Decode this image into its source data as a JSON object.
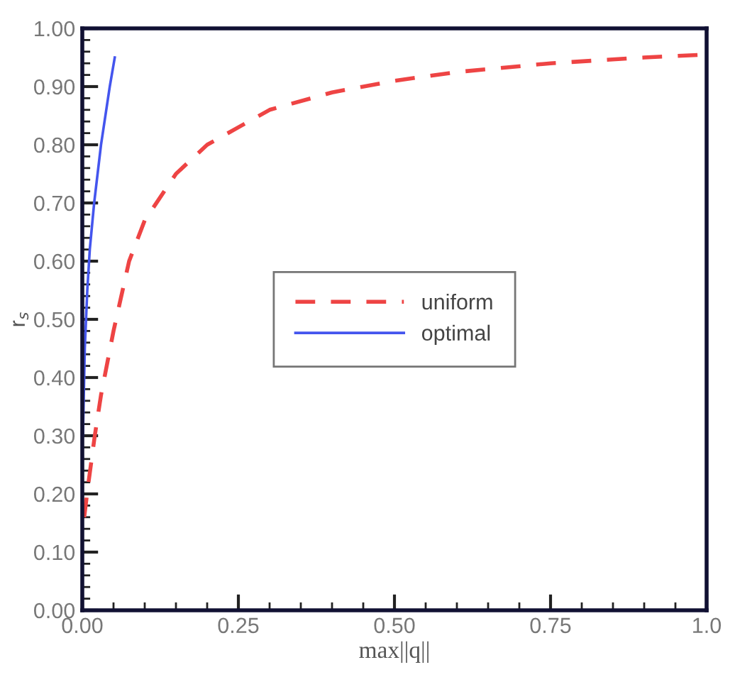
{
  "chart_data": {
    "type": "line",
    "xlabel": "max||q||",
    "ylabel": "r$_{s}$",
    "xlim": [
      0,
      1
    ],
    "ylim": [
      0,
      1
    ],
    "xticks": [
      {
        "value": 0,
        "label": "0.00"
      },
      0.25,
      {
        "value": 0.5,
        "label": "0.50"
      },
      0.75,
      {
        "value": 1,
        "label": "1.0"
      }
    ],
    "yticks": [
      {
        "value": 0,
        "label": "0.00"
      },
      {
        "value": 0.1,
        "label": "0.10"
      },
      {
        "value": 0.2,
        "label": "0.20"
      },
      {
        "value": 0.3,
        "label": "0.30"
      },
      {
        "value": 0.4,
        "label": "0.40"
      },
      {
        "value": 0.5,
        "label": "0.50"
      },
      {
        "value": 0.6,
        "label": "0.60"
      },
      {
        "value": 0.7,
        "label": "0.70"
      },
      {
        "value": 0.8,
        "label": "0.80"
      },
      {
        "value": 0.9,
        "label": "0.90"
      },
      {
        "value": 1,
        "label": "1.00"
      }
    ],
    "grid": false,
    "legend": "center",
    "series": [
      {
        "name": "uniform",
        "color": "#ee4444",
        "line_style": "dashed",
        "x": [
          0.003,
          0.01,
          0.02,
          0.03,
          0.05,
          0.075,
          0.1,
          0.15,
          0.2,
          0.25,
          0.3,
          0.4,
          0.5,
          0.6,
          0.75,
          0.9,
          1.0
        ],
        "values": [
          0.16,
          0.22,
          0.3,
          0.37,
          0.48,
          0.6,
          0.67,
          0.75,
          0.8,
          0.83,
          0.86,
          0.89,
          0.91,
          0.925,
          0.94,
          0.95,
          0.955
        ]
      },
      {
        "name": "optimal",
        "color": "#4455ee",
        "line_style": "solid",
        "x": [
          0.001,
          0.004,
          0.008,
          0.012,
          0.019,
          0.03,
          0.044,
          0.052
        ],
        "values": [
          0.3,
          0.45,
          0.55,
          0.62,
          0.7,
          0.8,
          0.9,
          0.95
        ]
      }
    ]
  }
}
